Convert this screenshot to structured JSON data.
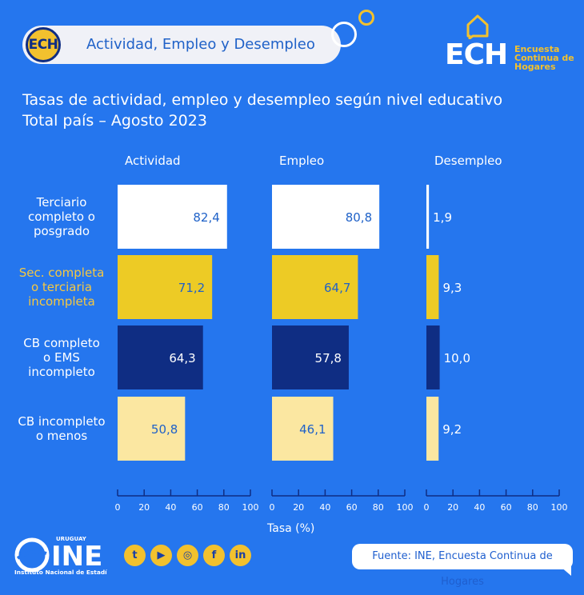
{
  "header": {
    "badge": "ECH",
    "title": "Actividad, Empleo y Desempleo"
  },
  "brand": {
    "logo_text": "ECH",
    "logo_sub": [
      "Encuesta",
      "Continua de",
      "Hogares"
    ]
  },
  "chart_title": [
    "Tasas de actividad, empleo y desempleo según nivel educativo",
    "Total país – Agosto 2023"
  ],
  "chart_data": {
    "type": "bar",
    "orientation": "horizontal",
    "categories": [
      [
        "Terciario",
        "completo o",
        "posgrado"
      ],
      [
        "Sec. completa",
        "o terciaria",
        "incompleta"
      ],
      [
        "CB completo",
        "o EMS",
        "incompleto"
      ],
      [
        "CB incompleto",
        "o menos"
      ]
    ],
    "category_colors": [
      "#FFFFFF",
      "#EDCB25",
      "#0F2D83",
      "#FBE7A1"
    ],
    "label_colors": [
      "#FFFFFF",
      "#F5C842",
      "#FFFFFF",
      "#FFFFFF"
    ],
    "value_text_colors": [
      "#2062C8",
      "#2062C8",
      "#FFFFFF",
      "#2062C8"
    ],
    "panels": [
      {
        "name": "Actividad",
        "values": [
          82.4,
          71.2,
          64.3,
          50.8
        ],
        "labels": [
          "82,4",
          "71,2",
          "64,3",
          "50,8"
        ]
      },
      {
        "name": "Empleo",
        "values": [
          80.8,
          64.7,
          57.8,
          46.1
        ],
        "labels": [
          "80,8",
          "64,7",
          "57,8",
          "46,1"
        ]
      },
      {
        "name": "Desempleo",
        "values": [
          1.9,
          9.3,
          10.0,
          9.2
        ],
        "labels": [
          "1,9",
          "9,3",
          "10,0",
          "9,2"
        ]
      }
    ],
    "xlim": [
      0,
      100
    ],
    "xticks": [
      0,
      20,
      40,
      60,
      80,
      100
    ],
    "xlabel": "Tasa (%)"
  },
  "footer": {
    "ine_top": "URUGUAY",
    "ine_name": "INE",
    "ine_sub": "Instituto Nacional de Estadística",
    "social": [
      "twitter-icon",
      "youtube-icon",
      "instagram-icon",
      "facebook-icon",
      "linkedin-icon"
    ],
    "source": "Fuente: INE, Encuesta Continua de Hogares"
  }
}
